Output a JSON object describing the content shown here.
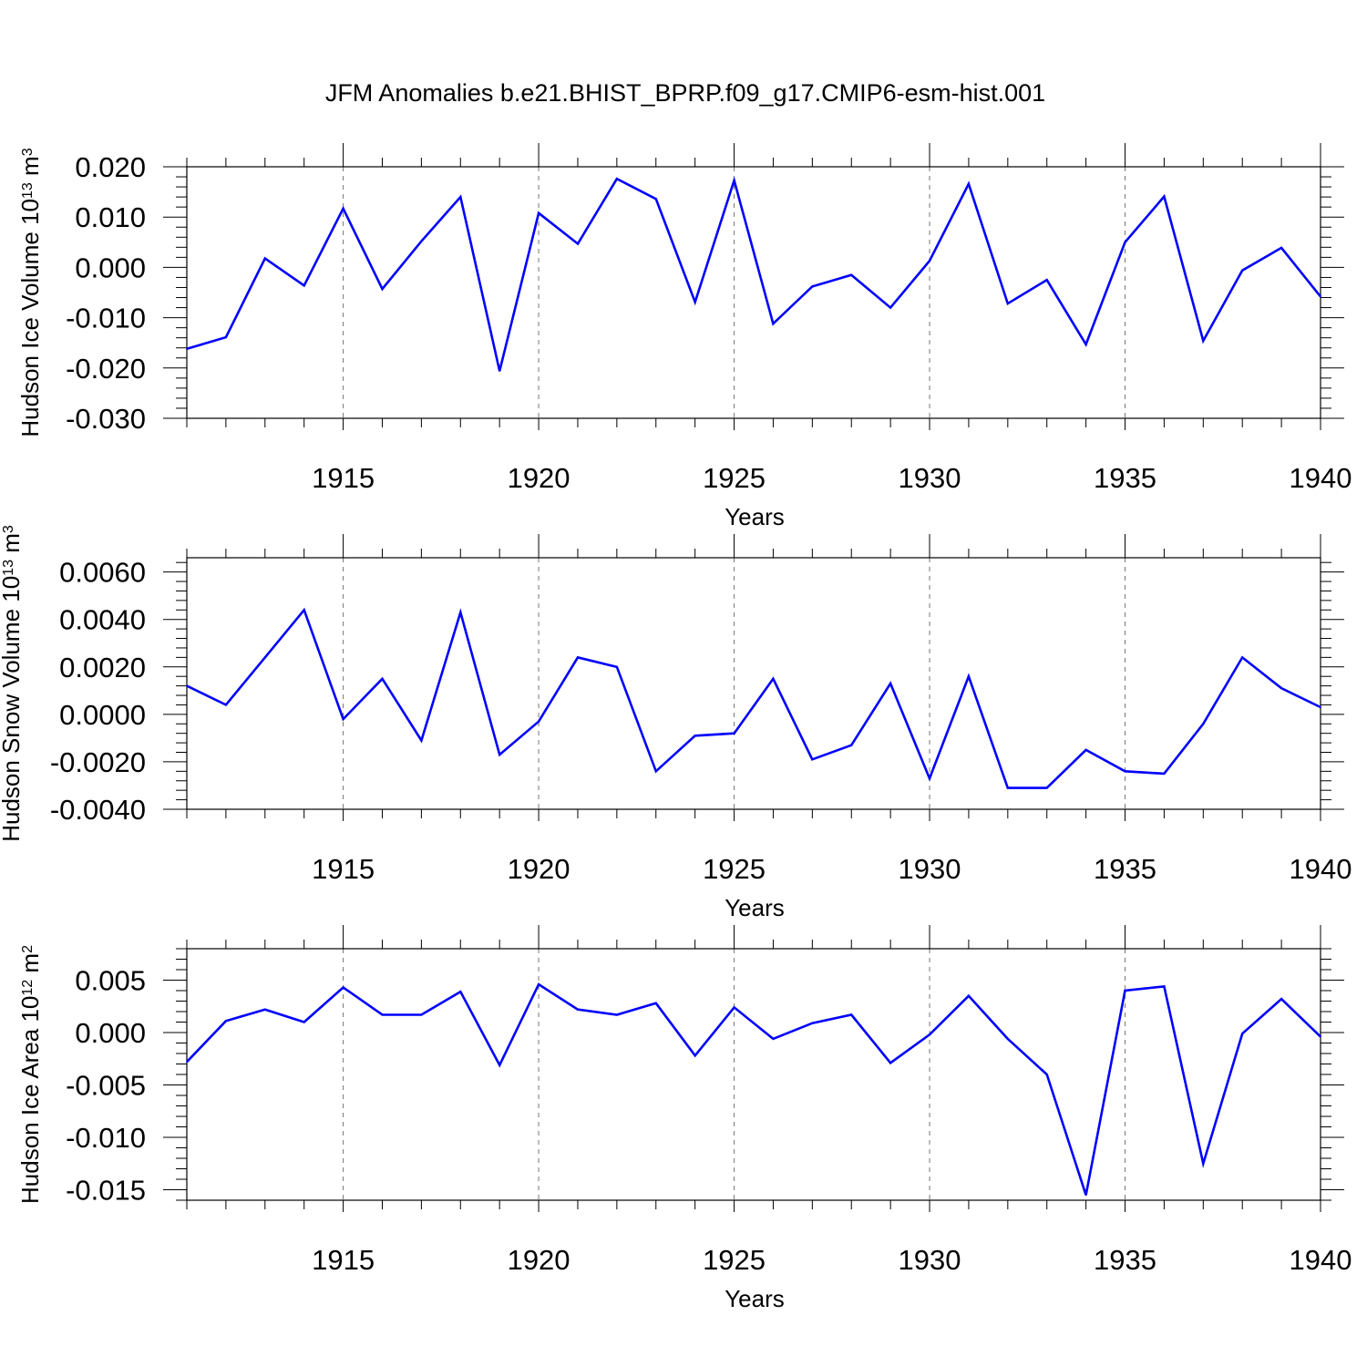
{
  "figure": {
    "title": "JFM Anomalies b.e21.BHIST_BPRP.f09_g17.CMIP6-esm-hist.001"
  },
  "chart_data": [
    {
      "type": "line",
      "title": "",
      "xlabel": "Years",
      "ylabel": {
        "text": "Hudson Ice Volume 10",
        "exp": "13",
        "unit": " m",
        "unit_exp": "3"
      },
      "xlim": [
        1911,
        1940
      ],
      "ylim": [
        -0.03,
        0.02
      ],
      "xticks": [
        1915,
        1920,
        1925,
        1930,
        1935,
        1940
      ],
      "xtick_labels": [
        "1915",
        "1920",
        "1925",
        "1930",
        "1935",
        "1940"
      ],
      "yticks": [
        -0.03,
        -0.02,
        -0.01,
        0.0,
        0.01,
        0.02
      ],
      "ytick_labels": [
        "-0.030",
        "-0.020",
        "-0.010",
        "0.000",
        "0.010",
        "0.020"
      ],
      "grid": "x-dashed",
      "line_color": "#0000ff",
      "x": [
        1911,
        1912,
        1913,
        1914,
        1915,
        1916,
        1917,
        1918,
        1919,
        1920,
        1921,
        1922,
        1923,
        1924,
        1925,
        1926,
        1927,
        1928,
        1929,
        1930,
        1931,
        1932,
        1933,
        1934,
        1935,
        1936,
        1937,
        1938,
        1939,
        1940
      ],
      "values": [
        -0.0162,
        -0.0139,
        0.0018,
        -0.0036,
        0.0117,
        -0.0043,
        0.0052,
        0.014,
        -0.0206,
        0.0108,
        0.0047,
        0.0176,
        0.0136,
        -0.0069,
        0.0173,
        -0.0112,
        -0.0038,
        -0.0015,
        -0.008,
        0.0013,
        0.0166,
        -0.0072,
        -0.0025,
        -0.0153,
        0.005,
        0.0141,
        -0.0146,
        -0.0006,
        0.0039,
        -0.0058
      ]
    },
    {
      "type": "line",
      "title": "",
      "xlabel": "Years",
      "ylabel": {
        "text": "Hudson Snow Volume 10",
        "exp": "13",
        "unit": " m",
        "unit_exp": "3"
      },
      "xlim": [
        1911,
        1940
      ],
      "ylim": [
        -0.004,
        0.0066
      ],
      "xticks": [
        1915,
        1920,
        1925,
        1930,
        1935,
        1940
      ],
      "xtick_labels": [
        "1915",
        "1920",
        "1925",
        "1930",
        "1935",
        "1940"
      ],
      "yticks": [
        -0.004,
        -0.002,
        0.0,
        0.002,
        0.004,
        0.006
      ],
      "ytick_labels": [
        "-0.0040",
        "-0.0020",
        "0.0000",
        "0.0020",
        "0.0040",
        "0.0060"
      ],
      "grid": "x-dashed",
      "line_color": "#0000ff",
      "x": [
        1911,
        1912,
        1913,
        1914,
        1915,
        1916,
        1917,
        1918,
        1919,
        1920,
        1921,
        1922,
        1923,
        1924,
        1925,
        1926,
        1927,
        1928,
        1929,
        1930,
        1931,
        1932,
        1933,
        1934,
        1935,
        1936,
        1937,
        1938,
        1939,
        1940
      ],
      "values": [
        0.0012,
        0.0004,
        0.0024,
        0.0044,
        -0.0002,
        0.0015,
        -0.0011,
        0.0043,
        -0.0017,
        -0.0003,
        0.0024,
        0.002,
        -0.0024,
        -0.0009,
        -0.0008,
        0.0015,
        -0.0019,
        -0.0013,
        0.0013,
        -0.0027,
        0.0016,
        -0.0031,
        -0.0031,
        -0.0015,
        -0.0024,
        -0.0025,
        -0.0004,
        0.0024,
        0.0011,
        0.0003
      ]
    },
    {
      "type": "line",
      "title": "",
      "xlabel": "Years",
      "ylabel": {
        "text": "Hudson Ice Area 10",
        "exp": "12",
        "unit": " m",
        "unit_exp": "2"
      },
      "xlim": [
        1911,
        1940
      ],
      "ylim": [
        -0.016,
        0.008
      ],
      "xticks": [
        1915,
        1920,
        1925,
        1930,
        1935,
        1940
      ],
      "xtick_labels": [
        "1915",
        "1920",
        "1925",
        "1930",
        "1935",
        "1940"
      ],
      "yticks": [
        -0.015,
        -0.01,
        -0.005,
        0.0,
        0.005
      ],
      "ytick_labels": [
        "-0.015",
        "-0.010",
        "-0.005",
        "0.000",
        "0.005"
      ],
      "grid": "x-dashed",
      "line_color": "#0000ff",
      "x": [
        1911,
        1912,
        1913,
        1914,
        1915,
        1916,
        1917,
        1918,
        1919,
        1920,
        1921,
        1922,
        1923,
        1924,
        1925,
        1926,
        1927,
        1928,
        1929,
        1930,
        1931,
        1932,
        1933,
        1934,
        1935,
        1936,
        1937,
        1938,
        1939,
        1940
      ],
      "values": [
        -0.0028,
        0.0011,
        0.0022,
        0.001,
        0.0043,
        0.0017,
        0.0017,
        0.0039,
        -0.0031,
        0.0046,
        0.0022,
        0.0017,
        0.0028,
        -0.0022,
        0.0024,
        -0.0006,
        0.0009,
        0.0017,
        -0.0029,
        -0.0002,
        0.0035,
        -0.0006,
        -0.004,
        -0.0155,
        0.004,
        0.0044,
        -0.0125,
        -0.0001,
        0.0032,
        -0.0004
      ]
    }
  ]
}
